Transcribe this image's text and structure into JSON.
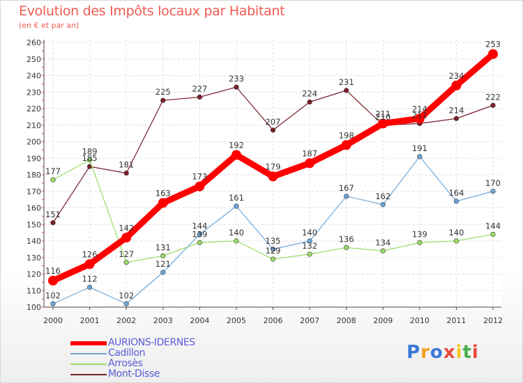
{
  "chart_data": {
    "type": "line",
    "title": "Evolution des Impôts locaux par Habitant",
    "subtitle": "(en € et par an)",
    "categories": [
      "2000",
      "2001",
      "2002",
      "2003",
      "2004",
      "2005",
      "2006",
      "2007",
      "2008",
      "2009",
      "2010",
      "2011",
      "2012"
    ],
    "ylim": [
      100,
      260
    ],
    "yticks": [
      "100",
      "110",
      "120",
      "130",
      "140",
      "150",
      "160",
      "170",
      "180",
      "190",
      "200",
      "210",
      "220",
      "230",
      "240",
      "250",
      "260"
    ],
    "grid": true,
    "legend_position": "bottom-left",
    "series": [
      {
        "name": "Mont-Disse",
        "color": "#7a1f2a",
        "values": [
          151,
          185,
          181,
          225,
          227,
          233,
          207,
          224,
          231,
          210,
          211,
          214,
          222
        ]
      },
      {
        "name": "Arrosès",
        "color": "#99dd66",
        "values": [
          177,
          189,
          127,
          131,
          139,
          140,
          129,
          132,
          136,
          134,
          139,
          140,
          144
        ]
      },
      {
        "name": "Cadillon",
        "color": "#6ea7d8",
        "values": [
          102,
          112,
          102,
          121,
          144,
          161,
          135,
          140,
          167,
          162,
          191,
          164,
          170
        ]
      },
      {
        "name": "AURIONS-IDERNES",
        "color": "#ff0000",
        "values": [
          116,
          126,
          142,
          163,
          173,
          192,
          179,
          187,
          198,
          211,
          214,
          234,
          253
        ]
      }
    ],
    "legend": [
      "AURIONS-IDERNES",
      "Cadillon",
      "Arrosès",
      "Mont-Disse"
    ]
  },
  "logo": {
    "text": "Proxiti",
    "letters": [
      "P",
      "r",
      "o",
      "x",
      "i",
      "t",
      "i"
    ],
    "colors": [
      "#3a78d8",
      "#f29c1f",
      "#3a78d8",
      "#e84c3d",
      "#f2c81f",
      "#46b04a",
      "#e84c3d"
    ]
  }
}
